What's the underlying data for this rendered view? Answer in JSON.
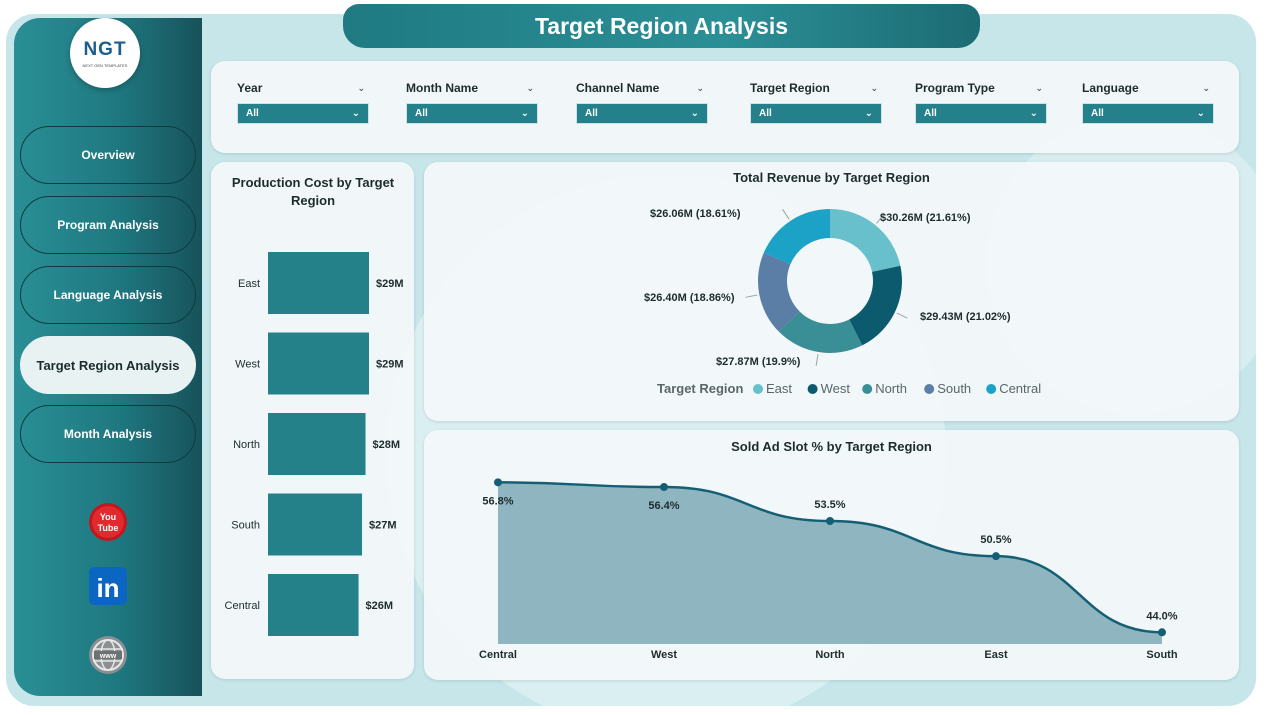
{
  "header": {
    "title": "Target Region Analysis"
  },
  "logo": {
    "text": "NGT",
    "subtitle": "NEXT GEN TEMPLATES"
  },
  "nav": {
    "items": [
      {
        "label": "Overview",
        "active": false
      },
      {
        "label": "Program Analysis",
        "active": false
      },
      {
        "label": "Language Analysis",
        "active": false
      },
      {
        "label": "Target Region Analysis",
        "active": true
      },
      {
        "label": "Month Analysis",
        "active": false
      }
    ]
  },
  "social": {
    "icons": [
      "youtube-icon",
      "linkedin-icon",
      "website-icon"
    ],
    "youtube_label": "You Tube",
    "linkedin_label": "in",
    "web_label": "www"
  },
  "filters": [
    {
      "label": "Year",
      "value": "All"
    },
    {
      "label": "Month Name",
      "value": "All"
    },
    {
      "label": "Channel Name",
      "value": "All"
    },
    {
      "label": "Target Region",
      "value": "All"
    },
    {
      "label": "Program Type",
      "value": "All"
    },
    {
      "label": "Language",
      "value": "All"
    }
  ],
  "colors": {
    "teal_dark": "#1f7880",
    "bar": "#248089",
    "east": "#67c0cb",
    "west": "#0c5a6e",
    "north": "#3a8e95",
    "south": "#5b7ea6",
    "central": "#1da2c7",
    "area_fill": "#8fb6c0",
    "line": "#155f74"
  },
  "chart_data": [
    {
      "type": "bar",
      "title": "Production Cost by Target Region",
      "categories": [
        "East",
        "West",
        "North",
        "South",
        "Central"
      ],
      "values": [
        29,
        29,
        28,
        27,
        26
      ],
      "value_labels": [
        "$29M",
        "$29M",
        "$28M",
        "$27M",
        "$26M"
      ],
      "orientation": "horizontal",
      "xlim": [
        0,
        29
      ]
    },
    {
      "type": "pie",
      "title": "Total Revenue by Target Region",
      "legend_title": "Target Region",
      "legend_position": "bottom",
      "categories": [
        "East",
        "West",
        "North",
        "South",
        "Central"
      ],
      "values": [
        30.26,
        29.43,
        27.87,
        26.4,
        26.06
      ],
      "value_labels": [
        "$30.26M (21.61%)",
        "$29.43M (21.02%)",
        "$27.87M (19.9%)",
        "$26.40M (18.86%)",
        "$26.06M (18.61%)"
      ]
    },
    {
      "type": "area",
      "title": "Sold Ad Slot % by Target Region",
      "categories": [
        "Central",
        "West",
        "North",
        "East",
        "South"
      ],
      "values": [
        56.8,
        56.4,
        53.5,
        50.5,
        44.0
      ],
      "value_labels": [
        "56.8%",
        "56.4%",
        "53.5%",
        "50.5%",
        "44.0%"
      ],
      "ylim": [
        43,
        57
      ]
    }
  ]
}
